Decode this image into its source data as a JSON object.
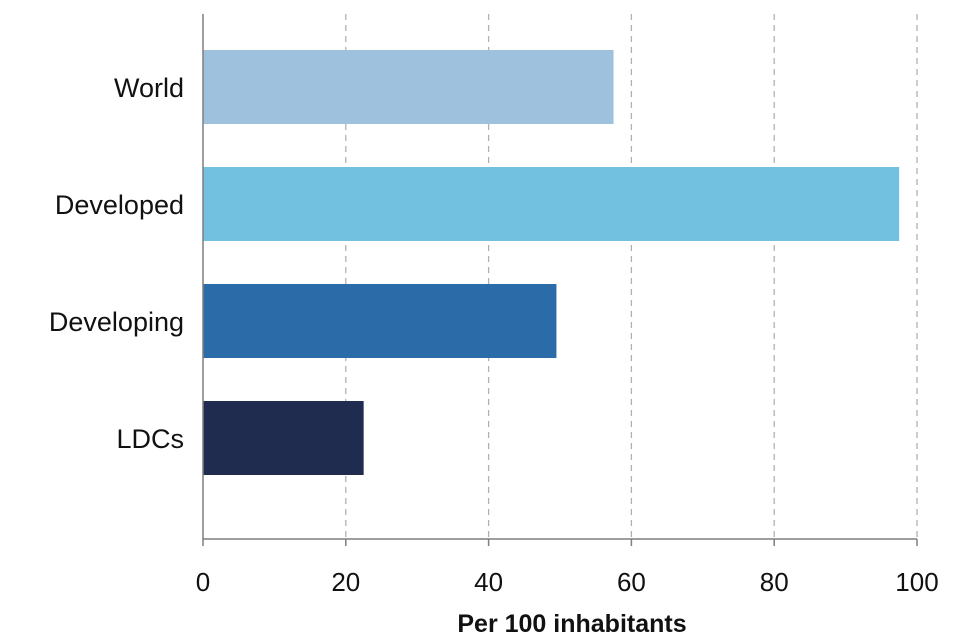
{
  "chart_data": {
    "type": "bar",
    "orientation": "horizontal",
    "categories": [
      "World",
      "Developed",
      "Developing",
      "LDCs"
    ],
    "values": [
      57.5,
      97.5,
      49.5,
      22.5
    ],
    "bar_colors": [
      "#9EC2DE",
      "#72C1E0",
      "#2A6BA8",
      "#1F2C50"
    ],
    "xlabel": "Per 100 inhabitants",
    "ylabel": "",
    "title": "",
    "xlim": [
      0,
      100
    ],
    "xticks": [
      0,
      20,
      40,
      60,
      80,
      100
    ],
    "xtick_labels": [
      "0",
      "20",
      "40",
      "60",
      "80",
      "100"
    ],
    "grid": "vertical dashed",
    "legend": "none"
  }
}
